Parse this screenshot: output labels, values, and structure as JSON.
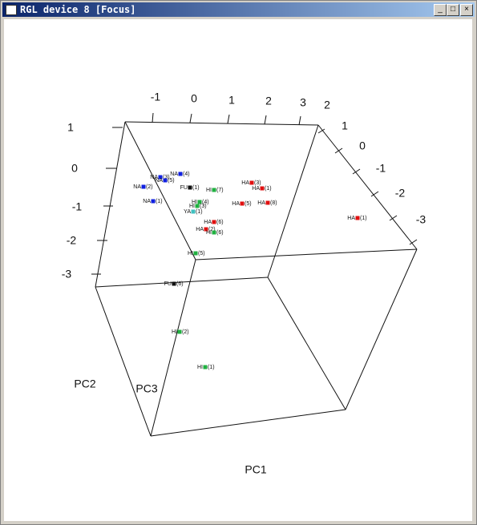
{
  "window": {
    "title": "RGL device 8 [Focus]"
  },
  "axes": {
    "pc1_ticks": [
      "-1",
      "0",
      "1",
      "2",
      "3"
    ],
    "pc3_ticks": [
      "2",
      "1",
      "0",
      "-1",
      "-2",
      "-3"
    ],
    "pc2_ticks": [
      "1",
      "0",
      "-1",
      "-2",
      "-3"
    ],
    "labels": [
      "PC1",
      "PC2",
      "PC3"
    ]
  },
  "points": [
    {
      "group": "NA",
      "number": "(4)",
      "color": "#1020e0"
    },
    {
      "group": "NA",
      "number": "(3)",
      "color": "#1020e0"
    },
    {
      "group": "NA",
      "number": "(5)",
      "color": "#1020e0"
    },
    {
      "group": "NA",
      "number": "(2)",
      "color": "#1020e0"
    },
    {
      "group": "NA",
      "number": "(1)",
      "color": "#1020e0"
    },
    {
      "group": "FU",
      "number": "(1)",
      "color": "#111111"
    },
    {
      "group": "HI",
      "number": "(7)",
      "color": "#20b040"
    },
    {
      "group": "HI",
      "number": "(4)",
      "color": "#20b040"
    },
    {
      "group": "HI",
      "number": "(3)",
      "color": "#20b040"
    },
    {
      "group": "YA",
      "number": "(1)",
      "color": "#40c0c0"
    },
    {
      "group": "HA",
      "number": "(3)",
      "color": "#e01010"
    },
    {
      "group": "HA",
      "number": "(1)",
      "color": "#e01010"
    },
    {
      "group": "HA",
      "number": "(5)",
      "color": "#e01010"
    },
    {
      "group": "HA",
      "number": "(8)",
      "color": "#e01010"
    },
    {
      "group": "HA",
      "number": "(6)",
      "color": "#e01010"
    },
    {
      "group": "HA",
      "number": "(2)",
      "color": "#e01010"
    },
    {
      "group": "HI",
      "number": "(6)",
      "color": "#20b040"
    },
    {
      "group": "HA",
      "number": "(1)",
      "color": "#e01010"
    },
    {
      "group": "HI",
      "number": "(5)",
      "color": "#20b040"
    },
    {
      "group": "FU",
      "number": "(6)",
      "color": "#111111"
    },
    {
      "group": "HI",
      "number": "(2)",
      "color": "#20b040"
    },
    {
      "group": "HI",
      "number": "(1)",
      "color": "#20b040"
    }
  ]
}
